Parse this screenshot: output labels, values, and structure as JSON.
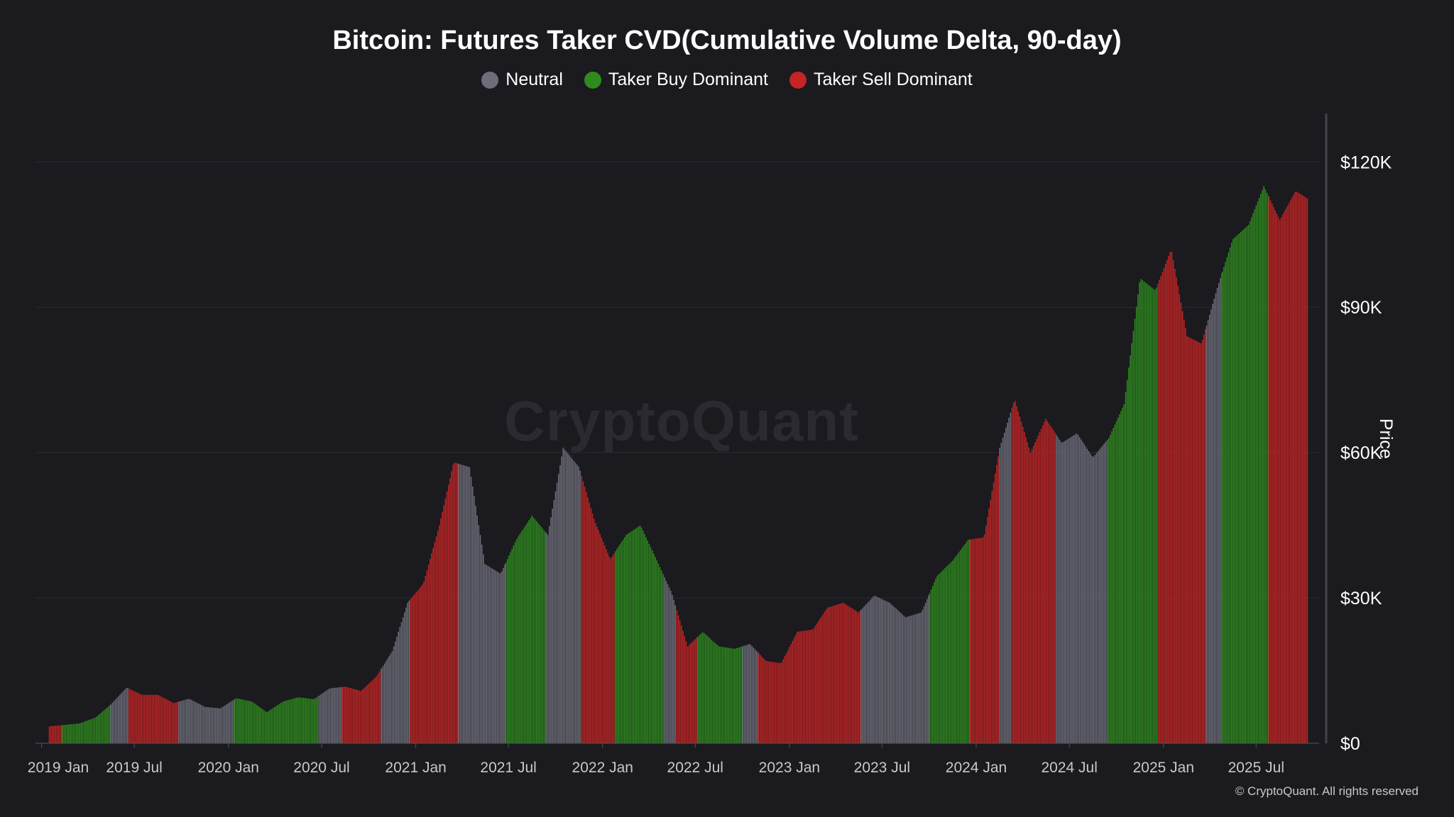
{
  "chart_data": {
    "type": "bar",
    "title": "Bitcoin: Futures Taker CVD(Cumulative Volume Delta, 90-day)",
    "ylabel": "Price",
    "ylim": [
      0,
      130000
    ],
    "y_ticks": [
      0,
      30000,
      60000,
      90000,
      120000
    ],
    "y_tick_labels": [
      "$0",
      "$30K",
      "$60K",
      "$90K",
      "$120K"
    ],
    "x_tick_labels": [
      "2019 Jan",
      "2019 Jul",
      "2020 Jan",
      "2020 Jul",
      "2021 Jan",
      "2021 Jul",
      "2022 Jan",
      "2022 Jul",
      "2023 Jan",
      "2023 Jul",
      "2024 Jan",
      "2024 Jul",
      "2025 Jan",
      "2025 Jul"
    ],
    "x_range": [
      "2018-12-20",
      "2025-11-01"
    ],
    "grid": true,
    "legend_placement": "top-center",
    "legend": [
      {
        "name": "Neutral",
        "color": "#6e6e7a"
      },
      {
        "name": "Taker Buy Dominant",
        "color": "#2e8b1e"
      },
      {
        "name": "Taker Sell Dominant",
        "color": "#c42424"
      }
    ],
    "monthly_price_start": "2019-01",
    "monthly_price": [
      3500,
      3800,
      4100,
      5300,
      8000,
      11500,
      10000,
      10000,
      8300,
      9200,
      7500,
      7200,
      9300,
      8600,
      6400,
      8600,
      9500,
      9100,
      11300,
      11700,
      10800,
      13800,
      19000,
      29000,
      33000,
      45000,
      58000,
      57000,
      37000,
      35000,
      42000,
      47000,
      43000,
      61000,
      57000,
      46000,
      38000,
      43000,
      45000,
      38000,
      31000,
      20000,
      23000,
      20000,
      19500,
      20500,
      17000,
      16500,
      23000,
      23500,
      28000,
      29000,
      27000,
      30500,
      29000,
      26000,
      27000,
      34500,
      37700,
      42000,
      42500,
      61000,
      71000,
      60000,
      67000,
      62000,
      64000,
      59000,
      63000,
      70000,
      96000,
      93500,
      102000,
      84000,
      82500,
      94000,
      104000,
      107000,
      115000,
      108000,
      114000,
      112000
    ],
    "regimes": [
      {
        "start": "2019-01-15",
        "end": "2019-02-10",
        "state": "Taker Sell Dominant"
      },
      {
        "start": "2019-02-10",
        "end": "2019-05-15",
        "state": "Taker Buy Dominant"
      },
      {
        "start": "2019-05-15",
        "end": "2019-06-20",
        "state": "Neutral"
      },
      {
        "start": "2019-06-20",
        "end": "2019-09-25",
        "state": "Taker Sell Dominant"
      },
      {
        "start": "2019-09-25",
        "end": "2020-01-12",
        "state": "Neutral"
      },
      {
        "start": "2020-01-12",
        "end": "2020-06-25",
        "state": "Taker Buy Dominant"
      },
      {
        "start": "2020-06-25",
        "end": "2020-08-10",
        "state": "Neutral"
      },
      {
        "start": "2020-08-10",
        "end": "2020-10-25",
        "state": "Taker Sell Dominant"
      },
      {
        "start": "2020-10-25",
        "end": "2020-12-20",
        "state": "Neutral"
      },
      {
        "start": "2020-12-20",
        "end": "2021-03-25",
        "state": "Taker Sell Dominant"
      },
      {
        "start": "2021-03-25",
        "end": "2021-06-25",
        "state": "Neutral"
      },
      {
        "start": "2021-06-25",
        "end": "2021-09-12",
        "state": "Taker Buy Dominant"
      },
      {
        "start": "2021-09-12",
        "end": "2021-11-20",
        "state": "Neutral"
      },
      {
        "start": "2021-11-20",
        "end": "2022-01-25",
        "state": "Taker Sell Dominant"
      },
      {
        "start": "2022-01-25",
        "end": "2022-05-01",
        "state": "Taker Buy Dominant"
      },
      {
        "start": "2022-05-01",
        "end": "2022-05-25",
        "state": "Neutral"
      },
      {
        "start": "2022-05-25",
        "end": "2022-07-05",
        "state": "Taker Sell Dominant"
      },
      {
        "start": "2022-07-05",
        "end": "2022-10-01",
        "state": "Taker Buy Dominant"
      },
      {
        "start": "2022-10-01",
        "end": "2022-11-01",
        "state": "Neutral"
      },
      {
        "start": "2022-11-01",
        "end": "2023-05-20",
        "state": "Taker Sell Dominant"
      },
      {
        "start": "2023-05-20",
        "end": "2023-10-01",
        "state": "Neutral"
      },
      {
        "start": "2023-10-01",
        "end": "2023-12-20",
        "state": "Taker Buy Dominant"
      },
      {
        "start": "2023-12-20",
        "end": "2024-02-15",
        "state": "Taker Sell Dominant"
      },
      {
        "start": "2024-02-15",
        "end": "2024-03-10",
        "state": "Neutral"
      },
      {
        "start": "2024-03-10",
        "end": "2024-06-05",
        "state": "Taker Sell Dominant"
      },
      {
        "start": "2024-06-05",
        "end": "2024-09-15",
        "state": "Neutral"
      },
      {
        "start": "2024-09-15",
        "end": "2024-12-20",
        "state": "Taker Buy Dominant"
      },
      {
        "start": "2024-12-20",
        "end": "2025-03-25",
        "state": "Taker Sell Dominant"
      },
      {
        "start": "2025-03-25",
        "end": "2025-04-25",
        "state": "Neutral"
      },
      {
        "start": "2025-04-25",
        "end": "2025-07-25",
        "state": "Taker Buy Dominant"
      },
      {
        "start": "2025-07-25",
        "end": "2025-10-10",
        "state": "Taker Sell Dominant"
      }
    ]
  },
  "watermark": "CryptoQuant",
  "copyright": "© CryptoQuant. All rights reserved"
}
